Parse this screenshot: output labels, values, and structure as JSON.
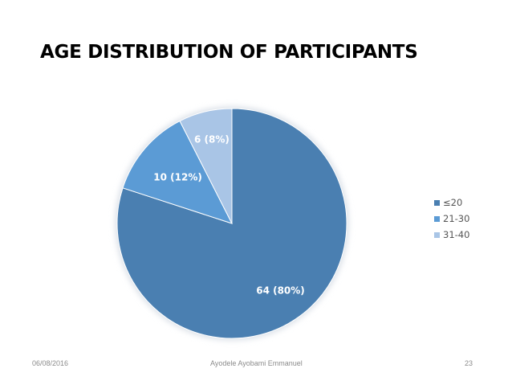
{
  "slide": {
    "title": "AGE DISTRIBUTION OF PARTICIPANTS",
    "footer": {
      "date": "06/08/2016",
      "author": "Ayodele Ayobami Emmanuel",
      "page": "23"
    }
  },
  "chart_data": {
    "type": "pie",
    "title": "",
    "categories": [
      "≤20",
      "21-30",
      "31-40"
    ],
    "values": [
      64,
      10,
      6
    ],
    "percent": [
      80,
      12,
      8
    ],
    "data_labels": [
      "64 (80%)",
      "10 (12%)",
      "6 (8%)"
    ],
    "colors": [
      "#4a7fb1",
      "#5b9bd5",
      "#a9c5e6"
    ],
    "start": "12 o'clock, clockwise",
    "legend": "right"
  }
}
